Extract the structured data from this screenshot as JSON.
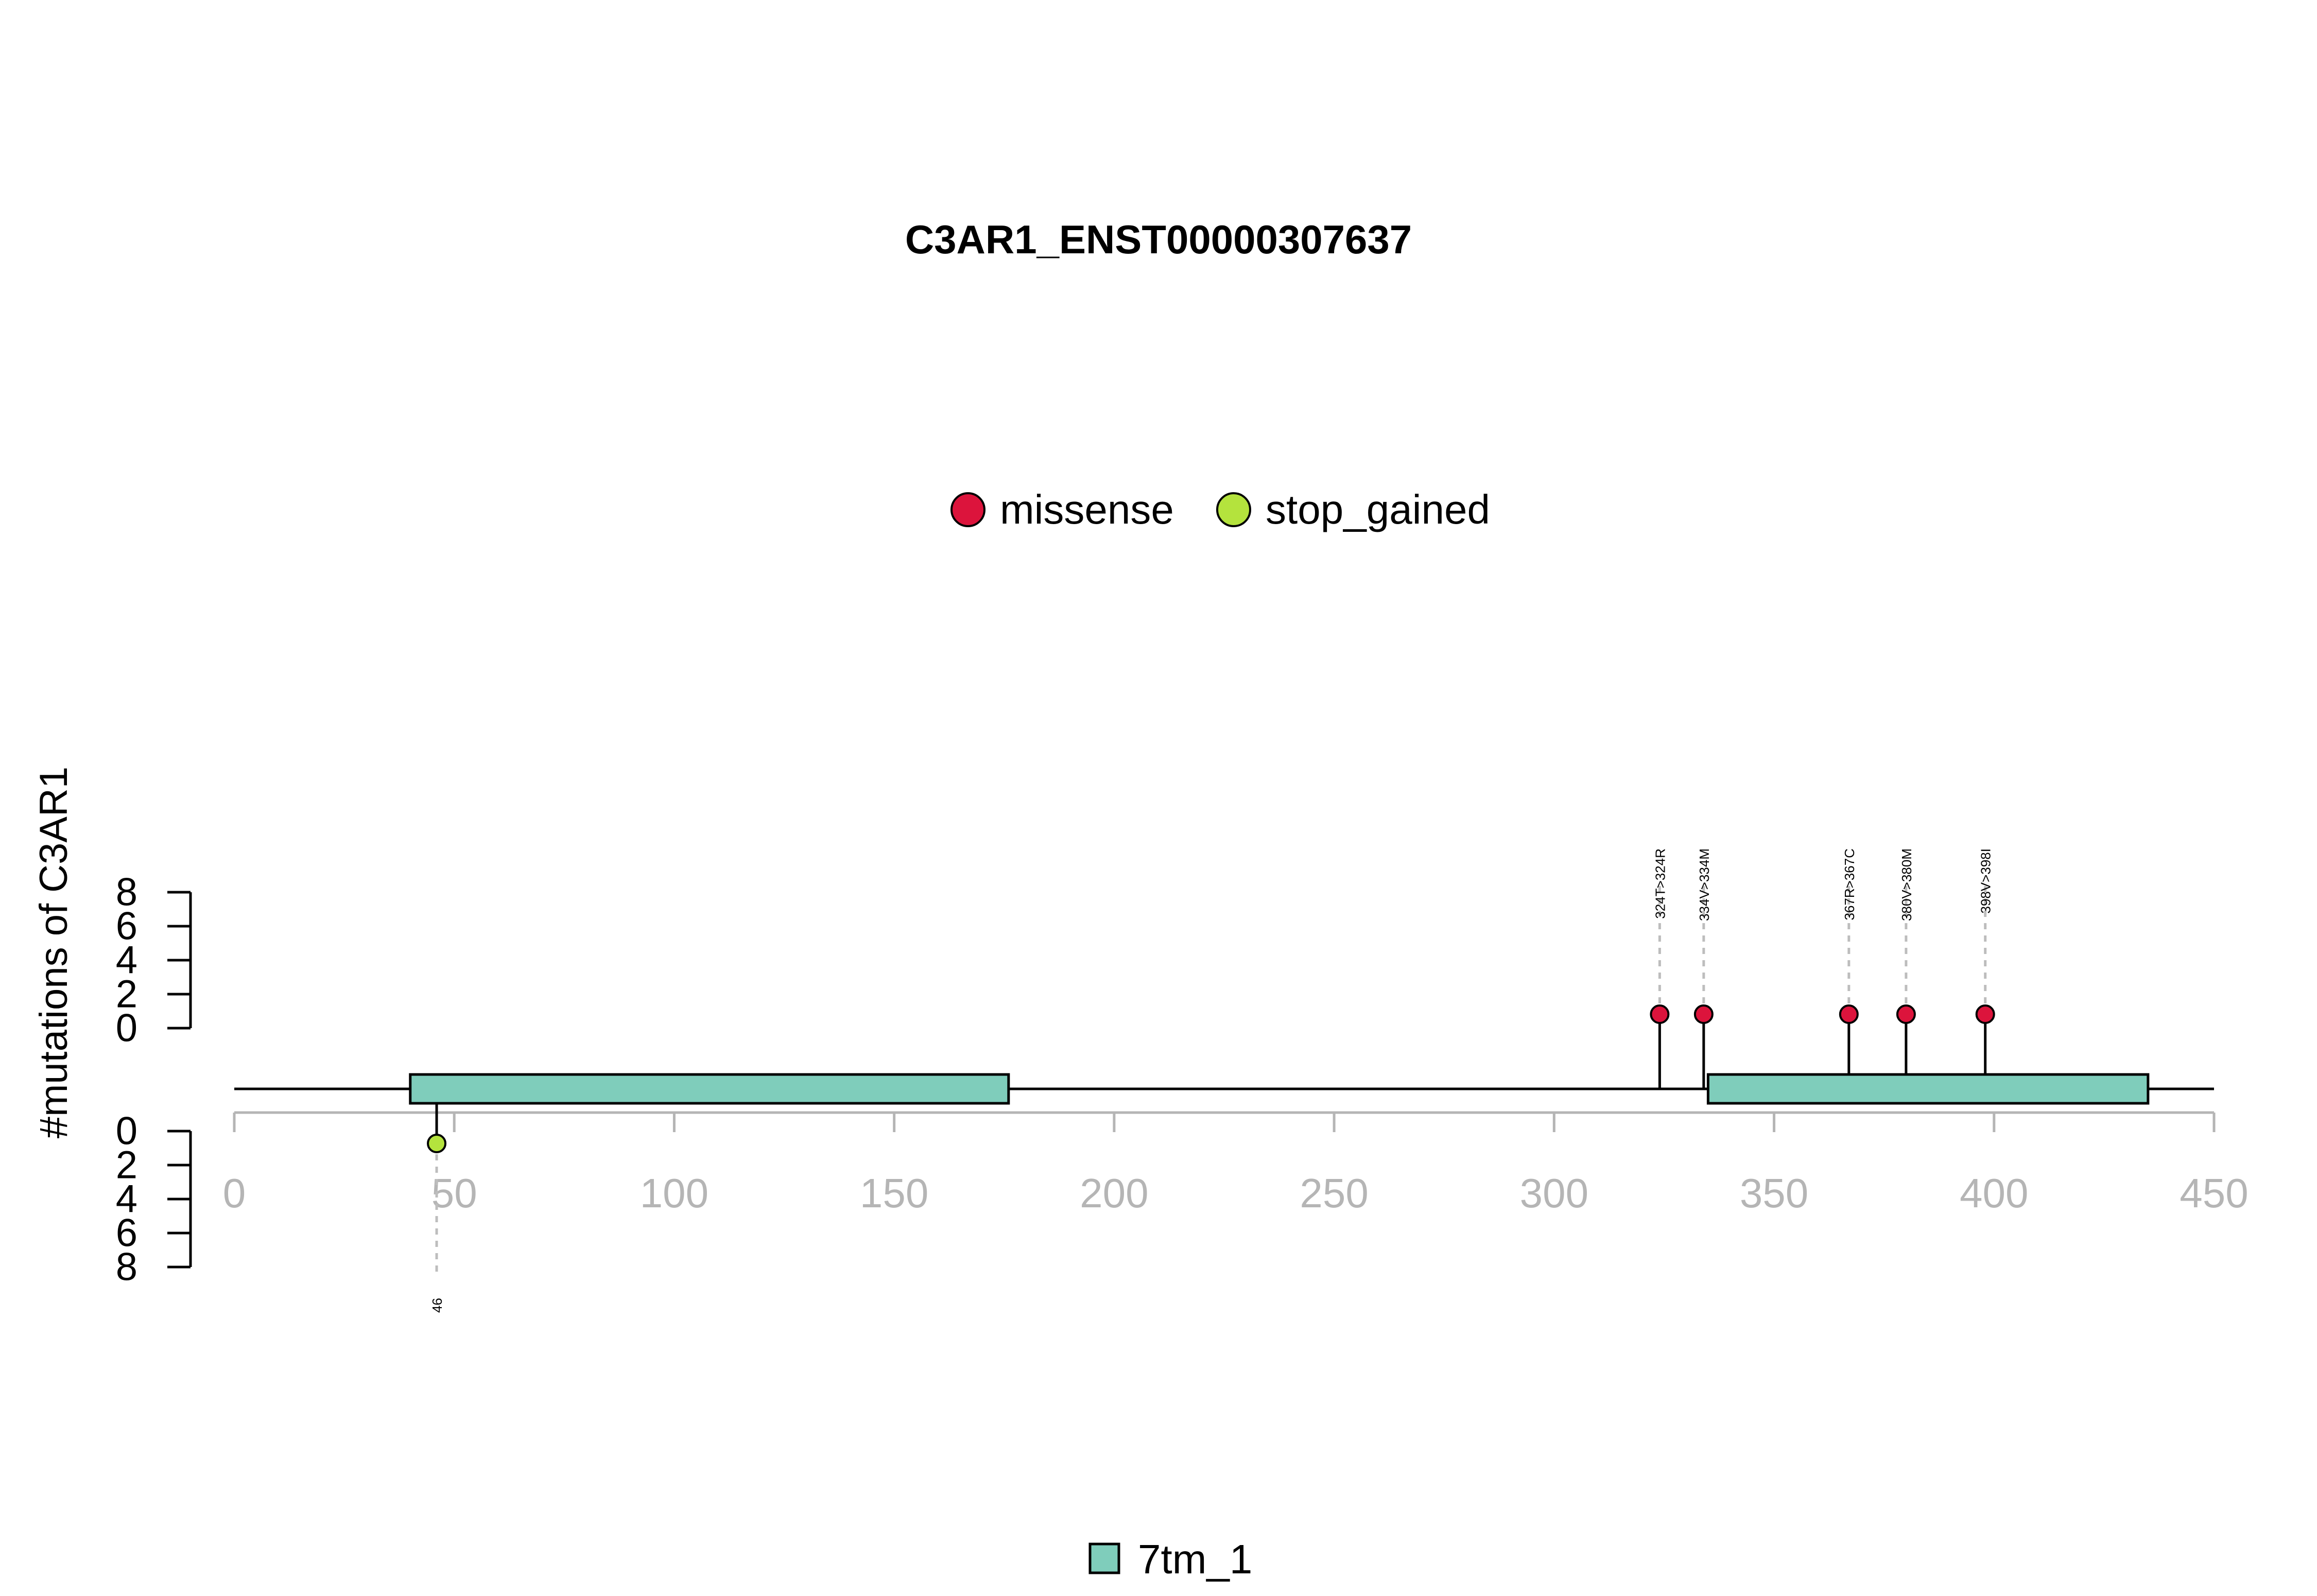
{
  "chart_data": {
    "type": "lollipop",
    "title": "C3AR1_ENST00000307637",
    "ylabel": "#mutations of C3AR1",
    "protein_length": 450,
    "xlim": [
      0,
      450
    ],
    "x_ticks": [
      0,
      50,
      100,
      150,
      200,
      250,
      300,
      350,
      400,
      450
    ],
    "y_ticks_top": [
      0,
      2,
      4,
      6,
      8
    ],
    "y_ticks_bottom": [
      0,
      2,
      4,
      6,
      8
    ],
    "mutation_legend": [
      {
        "label": "missense",
        "color": "#dc143c"
      },
      {
        "label": "stop_gained",
        "color": "#b4e33d"
      }
    ],
    "domain_legend": [
      {
        "label": "7tm_1",
        "color": "#7fcdbb"
      }
    ],
    "domains": [
      {
        "name": "7tm_1",
        "start": 40,
        "end": 176
      },
      {
        "name": "7tm_1",
        "start": 335,
        "end": 435
      }
    ],
    "mutations_top": [
      {
        "pos": 324,
        "label": "324T>324R",
        "type": "missense",
        "count": 1
      },
      {
        "pos": 334,
        "label": "334V>334M",
        "type": "missense",
        "count": 1
      },
      {
        "pos": 367,
        "label": "367R>367C",
        "type": "missense",
        "count": 1
      },
      {
        "pos": 380,
        "label": "380V>380M",
        "type": "missense",
        "count": 1
      },
      {
        "pos": 398,
        "label": "398V>398I",
        "type": "missense",
        "count": 1
      }
    ],
    "mutations_bottom": [
      {
        "pos": 46,
        "label": "46",
        "type": "stop_gained",
        "count": 1
      }
    ]
  }
}
